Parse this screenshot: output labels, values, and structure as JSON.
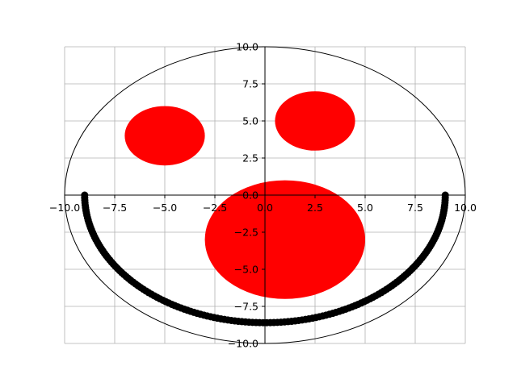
{
  "chart_data": {
    "type": "scatter",
    "title": "",
    "xlabel": "",
    "ylabel": "",
    "xlim": [
      -10,
      10
    ],
    "ylim": [
      -10,
      10
    ],
    "grid": true,
    "spines": "centered",
    "xticks": [
      -10.0,
      -7.5,
      -5.0,
      -2.5,
      0.0,
      2.5,
      5.0,
      7.5,
      10.0
    ],
    "yticks": [
      -10.0,
      -7.5,
      -5.0,
      -2.5,
      0.0,
      2.5,
      5.0,
      7.5,
      10.0
    ],
    "xtick_labels": [
      "−10.0",
      "−7.5",
      "−5.0",
      "−2.5",
      "0.0",
      "2.5",
      "5.0",
      "7.5",
      "10.0"
    ],
    "ytick_labels": [
      "−10.0",
      "−7.5",
      "−5.0",
      "−2.5",
      "0.0",
      "2.5",
      "5.0",
      "7.5",
      "10.0"
    ],
    "colors": {
      "fill": "#ff0000",
      "curve": "#000000",
      "grid": "#b0b0b0",
      "outline": "#000000"
    },
    "outline_circle": {
      "center": [
        0,
        0
      ],
      "radius": 10
    },
    "filled_ellipses": [
      {
        "name": "left-eye",
        "center": [
          -5,
          4
        ],
        "rx": 2,
        "ry": 2,
        "color": "#ff0000"
      },
      {
        "name": "right-eye",
        "center": [
          2.5,
          5
        ],
        "rx": 2,
        "ry": 2,
        "color": "#ff0000"
      },
      {
        "name": "nose",
        "center": [
          1,
          -3
        ],
        "rx": 4,
        "ry": 4,
        "color": "#ff0000"
      }
    ],
    "smile": {
      "center": [
        0,
        0
      ],
      "half_width": 9,
      "depth": 8.6,
      "count": 160,
      "color": "#000000"
    }
  }
}
